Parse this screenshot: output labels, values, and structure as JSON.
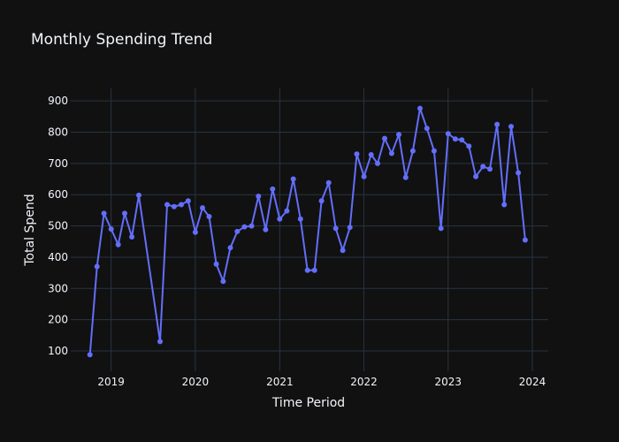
{
  "chart_data": {
    "type": "line",
    "title": "Monthly Spending Trend",
    "xlabel": "Time Period",
    "ylabel": "Total Spend",
    "x_ticks": [
      "2019",
      "2020",
      "2021",
      "2022",
      "2023",
      "2024"
    ],
    "y_ticks": [
      100,
      200,
      300,
      400,
      500,
      600,
      700,
      800,
      900
    ],
    "xlim": [
      "2018-07-10",
      "2024-03-10"
    ],
    "ylim": [
      35,
      940
    ],
    "grid": true,
    "legend": "none",
    "colors": {
      "background": "#111111",
      "grid": "#283442",
      "line": "#636efa",
      "text": "#f2f5fa"
    },
    "series": [
      {
        "points": [
          [
            "2018-10-01",
            88
          ],
          [
            "2018-11-01",
            370
          ],
          [
            "2018-12-01",
            540
          ],
          [
            "2019-01-01",
            490
          ],
          [
            "2019-02-01",
            440
          ],
          [
            "2019-03-01",
            540
          ],
          [
            "2019-04-01",
            465
          ],
          [
            "2019-05-01",
            598
          ],
          [
            "2019-08-01",
            130
          ],
          [
            "2019-09-01",
            568
          ],
          [
            "2019-10-01",
            562
          ],
          [
            "2019-11-01",
            568
          ],
          [
            "2019-12-01",
            580
          ],
          [
            "2020-01-01",
            480
          ],
          [
            "2020-02-01",
            558
          ],
          [
            "2020-03-01",
            530
          ],
          [
            "2020-04-01",
            378
          ],
          [
            "2020-05-01",
            323
          ],
          [
            "2020-06-01",
            430
          ],
          [
            "2020-07-01",
            482
          ],
          [
            "2020-08-01",
            497
          ],
          [
            "2020-09-01",
            500
          ],
          [
            "2020-10-01",
            595
          ],
          [
            "2020-11-01",
            488
          ],
          [
            "2020-12-01",
            618
          ],
          [
            "2021-01-01",
            522
          ],
          [
            "2021-02-01",
            548
          ],
          [
            "2021-03-01",
            650
          ],
          [
            "2021-04-01",
            522
          ],
          [
            "2021-05-01",
            358
          ],
          [
            "2021-06-01",
            358
          ],
          [
            "2021-07-01",
            580
          ],
          [
            "2021-08-01",
            638
          ],
          [
            "2021-09-01",
            492
          ],
          [
            "2021-10-01",
            422
          ],
          [
            "2021-11-01",
            495
          ],
          [
            "2021-12-01",
            730
          ],
          [
            "2022-01-01",
            658
          ],
          [
            "2022-02-01",
            728
          ],
          [
            "2022-03-01",
            700
          ],
          [
            "2022-04-01",
            780
          ],
          [
            "2022-05-01",
            732
          ],
          [
            "2022-06-01",
            792
          ],
          [
            "2022-07-01",
            655
          ],
          [
            "2022-08-01",
            740
          ],
          [
            "2022-09-01",
            876
          ],
          [
            "2022-10-01",
            812
          ],
          [
            "2022-11-01",
            740
          ],
          [
            "2022-12-01",
            492
          ],
          [
            "2023-01-01",
            795
          ],
          [
            "2023-02-01",
            778
          ],
          [
            "2023-03-01",
            775
          ],
          [
            "2023-04-01",
            755
          ],
          [
            "2023-05-01",
            658
          ],
          [
            "2023-06-01",
            690
          ],
          [
            "2023-07-01",
            682
          ],
          [
            "2023-08-01",
            825
          ],
          [
            "2023-09-01",
            568
          ],
          [
            "2023-10-01",
            818
          ],
          [
            "2023-11-01",
            670
          ],
          [
            "2023-12-01",
            455
          ]
        ]
      }
    ]
  }
}
